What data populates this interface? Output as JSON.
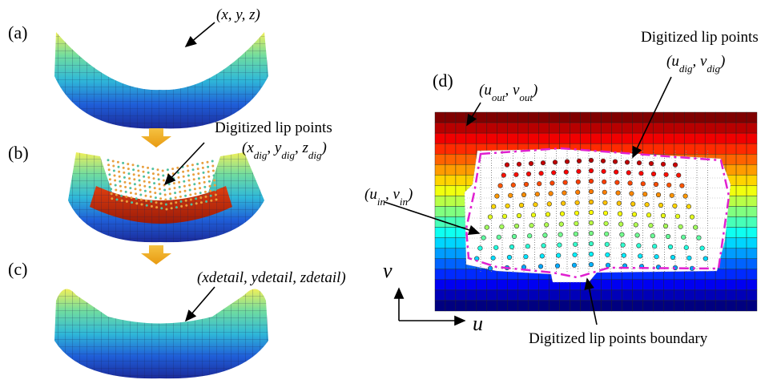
{
  "panels": [
    {
      "label": "(a)"
    },
    {
      "label": "(b)"
    },
    {
      "label": "(c)"
    },
    {
      "label": "(d)"
    }
  ],
  "annotations": [
    {
      "segments": [
        {
          "text": "(x, y, z)"
        }
      ]
    },
    {
      "segments": [
        {
          "text": "Digitized lip points"
        }
      ]
    },
    {
      "segments": [
        {
          "text": "(x",
          "sub": "dig"
        },
        {
          "text": ", y",
          "sub": "dig"
        },
        {
          "text": ", z",
          "sub": "dig"
        },
        {
          "text": ")"
        }
      ]
    },
    {
      "segments": [
        {
          "text": "(xdetail, ydetail, zdetail)"
        }
      ]
    },
    {
      "segments": [
        {
          "text": "(u",
          "sub": "out"
        },
        {
          "text": ", v",
          "sub": "out"
        },
        {
          "text": ")"
        }
      ]
    },
    {
      "segments": [
        {
          "text": "Digitized lip points"
        }
      ]
    },
    {
      "segments": [
        {
          "text": "(u",
          "sub": "dig"
        },
        {
          "text": ", v",
          "sub": "dig"
        },
        {
          "text": ")"
        }
      ]
    },
    {
      "segments": [
        {
          "text": "(u",
          "sub": "in"
        },
        {
          "text": ", v",
          "sub": "in"
        },
        {
          "text": ")"
        }
      ]
    },
    {
      "segments": [
        {
          "text": "Digitized lip points boundary"
        }
      ]
    },
    {
      "segments": [
        {
          "text": "v"
        }
      ]
    },
    {
      "segments": [
        {
          "text": "u"
        }
      ]
    }
  ]
}
